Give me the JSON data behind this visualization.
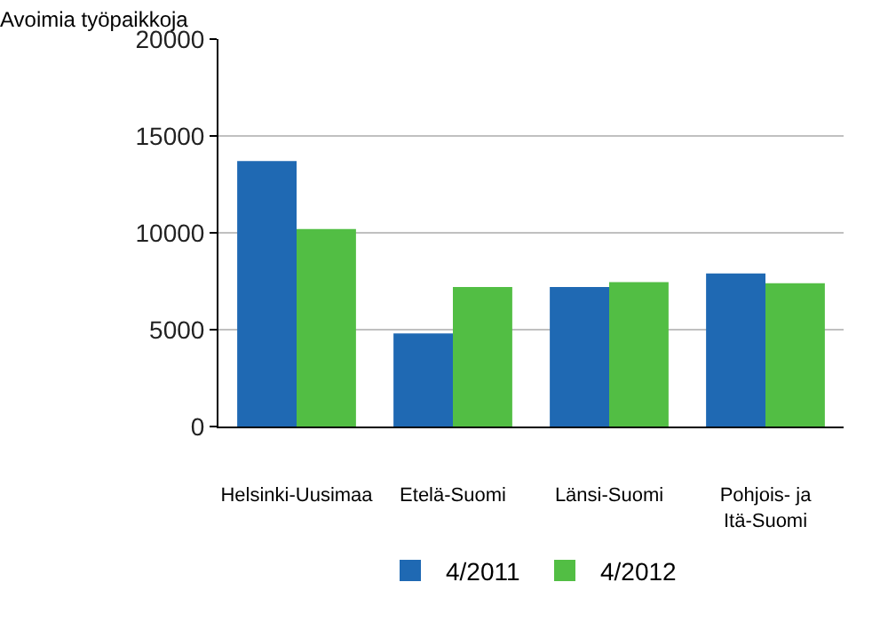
{
  "chart_data": {
    "type": "bar",
    "ylabel": "Avoimia työpaikkoja",
    "categories": [
      "Helsinki-Uusimaa",
      "Etelä-Suomi",
      "Länsi-Suomi",
      "Pohjois- ja\nItä-Suomi"
    ],
    "series": [
      {
        "name": "4/2011",
        "color": "#1f69b3",
        "values": [
          13700,
          4800,
          7200,
          7900
        ]
      },
      {
        "name": "4/2012",
        "color": "#52be44",
        "values": [
          10200,
          7200,
          7450,
          7400
        ]
      }
    ],
    "ylim": [
      0,
      20000
    ],
    "yticks": [
      0,
      5000,
      10000,
      15000,
      20000
    ],
    "grid": "y",
    "legend": "bottom"
  }
}
